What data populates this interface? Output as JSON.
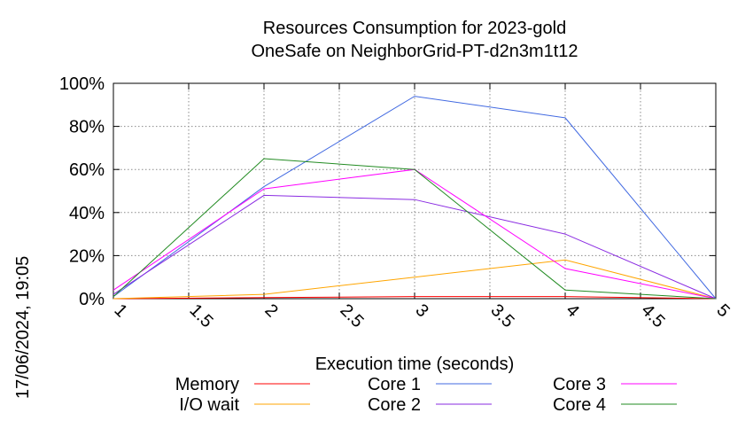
{
  "chart_data": {
    "type": "line",
    "title": "Resources Consumption for 2023-gold",
    "subtitle": "OneSafe on NeighborGrid-PT-d2n3m1t12",
    "xlabel": "Execution time (seconds)",
    "ylabel": "",
    "timestamp": "17/06/2024, 19:05",
    "xlim": [
      1,
      5
    ],
    "ylim": [
      0,
      100
    ],
    "x_ticks": [
      1,
      1.5,
      2,
      2.5,
      3,
      3.5,
      4,
      4.5,
      5
    ],
    "x_tick_labels": [
      "1",
      "1.5",
      "2",
      "2.5",
      "3",
      "3.5",
      "4",
      "4.5",
      "5"
    ],
    "y_ticks": [
      0,
      20,
      40,
      60,
      80,
      100
    ],
    "y_tick_labels": [
      "0%",
      "20%",
      "40%",
      "60%",
      "80%",
      "100%"
    ],
    "grid": true,
    "legend_position": "bottom",
    "x": [
      1,
      2,
      3,
      4,
      5
    ],
    "series": [
      {
        "name": "Memory",
        "color": "#ff0000",
        "values": [
          0,
          0.5,
          1,
          1,
          0
        ]
      },
      {
        "name": "I/O wait",
        "color": "#ffa500",
        "values": [
          0,
          2,
          10,
          18,
          0
        ]
      },
      {
        "name": "Core 1",
        "color": "#4169e1",
        "values": [
          1,
          52,
          94,
          84,
          0
        ]
      },
      {
        "name": "Core 2",
        "color": "#8a2be2",
        "values": [
          2,
          48,
          46,
          30,
          0
        ]
      },
      {
        "name": "Core 3",
        "color": "#ff00ff",
        "values": [
          4,
          51,
          60,
          14,
          0
        ]
      },
      {
        "name": "Core 4",
        "color": "#228b22",
        "values": [
          1,
          65,
          60,
          4,
          0
        ]
      }
    ]
  }
}
